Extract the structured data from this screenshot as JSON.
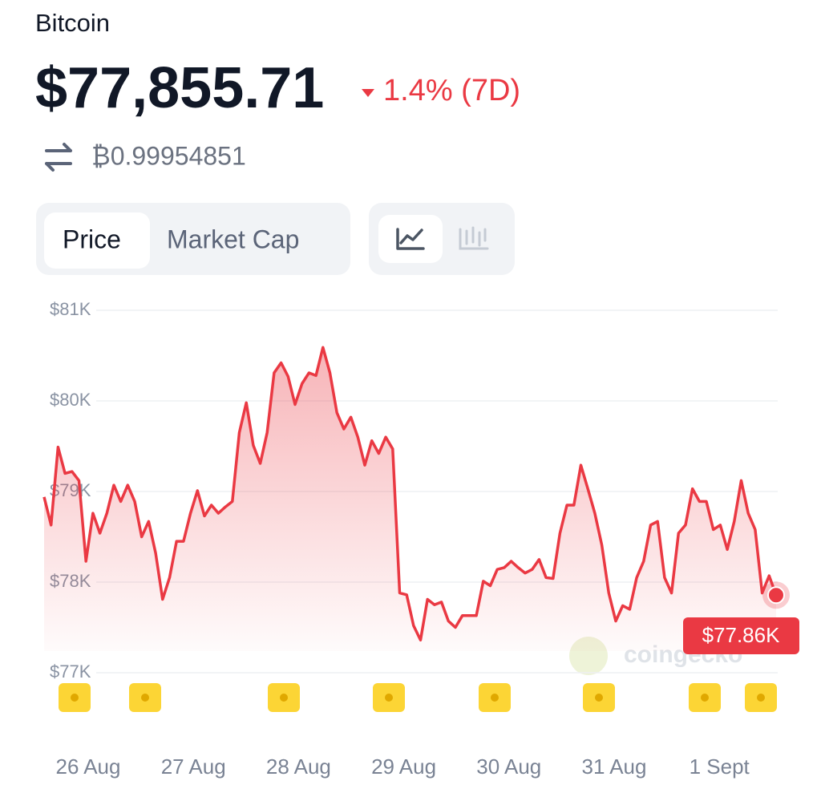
{
  "header": {
    "name": "Bitcoin",
    "price": "$77,855.71",
    "change": "1.4% (7D)",
    "btc_price": "₿0.99954851"
  },
  "tabs": [
    "Price",
    "Market Cap"
  ],
  "chart_data": {
    "type": "line",
    "color": "#ea3943",
    "ylim": [
      77000,
      81000
    ],
    "yticks": [
      {
        "value": 81000,
        "label": "$81K"
      },
      {
        "value": 80000,
        "label": "$80K"
      },
      {
        "value": 79000,
        "label": "$79K"
      },
      {
        "value": 78000,
        "label": "$78K"
      },
      {
        "value": 77000,
        "label": "$77K"
      }
    ],
    "grid": true,
    "x_labels": [
      "26 Aug",
      "27 Aug",
      "28 Aug",
      "29 Aug",
      "30 Aug",
      "31 Aug",
      "1 Sept"
    ],
    "values": [
      78940,
      78630,
      79490,
      79200,
      79220,
      79120,
      78230,
      78760,
      78540,
      78760,
      79070,
      78890,
      79070,
      78890,
      78500,
      78670,
      78320,
      77810,
      78050,
      78450,
      78450,
      78760,
      79010,
      78730,
      78850,
      78760,
      78830,
      78890,
      79650,
      79980,
      79510,
      79310,
      79650,
      80310,
      80420,
      80270,
      79960,
      80190,
      80310,
      80280,
      80590,
      80310,
      79870,
      79690,
      79820,
      79600,
      79290,
      79560,
      79420,
      79600,
      79470,
      77880,
      77860,
      77520,
      77360,
      77810,
      77750,
      77780,
      77570,
      77500,
      77630,
      77630,
      77630,
      78010,
      77960,
      78140,
      78160,
      78230,
      78160,
      78100,
      78140,
      78250,
      78050,
      78040,
      78540,
      78850,
      78850,
      79290,
      79030,
      78760,
      78410,
      77880,
      77570,
      77740,
      77700,
      78050,
      78230,
      78630,
      78670,
      78050,
      77880,
      78540,
      78630,
      79030,
      78890,
      78890,
      78580,
      78630,
      78360,
      78670,
      79120,
      78760,
      78580,
      77880,
      78070,
      77856
    ],
    "end_label": "$77.86K",
    "watermark": "coingecko"
  }
}
